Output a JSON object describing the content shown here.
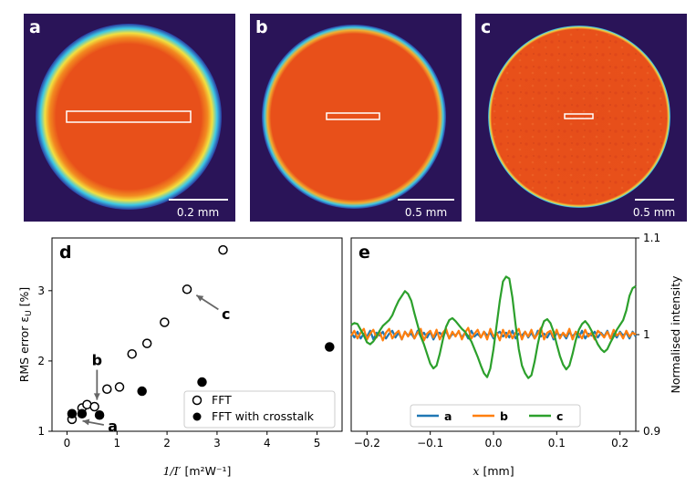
{
  "chart_data": [
    {
      "panel": "a",
      "type": "image",
      "scale_bar": "0.2 mm",
      "colors": {
        "background": "#2a1458",
        "disk": "#e8501a",
        "ring_outer": "#3cc8e6",
        "ring_mid": "#f0e040"
      }
    },
    {
      "panel": "b",
      "type": "image",
      "scale_bar": "0.5 mm",
      "colors": {
        "background": "#2a1458",
        "disk": "#e8501a",
        "ring_outer": "#3cc8e6",
        "ring_mid": "#f0e040"
      }
    },
    {
      "panel": "c",
      "type": "image",
      "scale_bar": "0.5 mm",
      "colors": {
        "background": "#2a1458",
        "disk": "#e8501a",
        "ring_outer": "#3cc8e6",
        "ring_mid": "#f0e040"
      }
    },
    {
      "panel": "d",
      "type": "scatter",
      "xlabel_main": "1/I′",
      "xlabel_unit": "[m²W⁻¹]",
      "ylabel_main": "RMS error ε",
      "ylabel_sub": "U",
      "ylabel_unit": "[%]",
      "xlim": [
        -0.3,
        5.5
      ],
      "ylim": [
        1,
        3.75
      ],
      "xticks": [
        "0",
        "1",
        "2",
        "3",
        "4",
        "5"
      ],
      "yticks": [
        "1",
        "2",
        "3"
      ],
      "series": [
        {
          "name": "FFT",
          "marker": "open-circle",
          "x": [
            0.1,
            0.3,
            0.4,
            0.55,
            0.8,
            1.05,
            1.3,
            1.6,
            1.95,
            2.4,
            3.12
          ],
          "y": [
            1.17,
            1.33,
            1.38,
            1.35,
            1.6,
            1.63,
            2.1,
            2.25,
            2.55,
            3.02,
            3.58
          ]
        },
        {
          "name": "FFT with crosstalk",
          "marker": "filled-circle",
          "x": [
            0.1,
            0.3,
            0.65,
            1.5,
            2.7,
            5.25
          ],
          "y": [
            1.25,
            1.25,
            1.23,
            1.57,
            1.7,
            2.2
          ]
        }
      ],
      "annotations": [
        {
          "label": "a",
          "points_to": [
            0.15,
            1.17
          ]
        },
        {
          "label": "b",
          "points_to": [
            0.6,
            1.33
          ]
        },
        {
          "label": "c",
          "points_to": [
            2.45,
            3.0
          ]
        }
      ],
      "legend_position": "bottom-right"
    },
    {
      "panel": "e",
      "type": "line",
      "xlabel_main": "x",
      "xlabel_unit": "[mm]",
      "ylabel": "Normalised intensity",
      "xlim": [
        -0.225,
        0.225
      ],
      "ylim": [
        0.9,
        1.1
      ],
      "xticks": [
        "−0.2",
        "−0.1",
        "0.0",
        "0.1",
        "0.2"
      ],
      "yticks": [
        "0.9",
        "1",
        "1.1"
      ],
      "x_start": -0.225,
      "x_step": 0.005,
      "series": [
        {
          "name": "a",
          "color": "#1f77b4",
          "values": [
            1.002,
            0.997,
            1.003,
            0.996,
            1.001,
            0.998,
            1.004,
            0.995,
            1.002,
            0.999,
            1.003,
            0.996,
            1.001,
            1.004,
            0.997,
            1.002,
            0.995,
            1.003,
            0.999,
            1.001,
            0.996,
            1.004,
            0.998,
            1.002,
            0.997,
            1.003,
            0.995,
            1.001,
            1.002,
            0.998,
            1.004,
            0.996,
            1.001,
            0.999,
            1.003,
            0.997,
            1.002,
            0.996,
            1.004,
            0.998,
            1.001,
            0.997,
            1.003,
            0.999,
            1.002,
            0.996,
            1.001,
            1.003,
            0.998,
            1.002,
            0.997,
            1.004,
            0.996,
            1.001,
            0.999,
            1.003,
            0.997,
            1.002,
            0.996,
            1.004,
            0.998,
            1.001,
            0.997,
            1.003,
            0.995,
            1.002,
            0.999,
            1.001,
            0.996,
            1.003,
            0.998,
            1.002,
            0.997,
            1.004,
            0.996,
            1.001,
            0.999,
            1.003,
            0.997,
            1.002,
            0.998,
            1.004,
            0.996,
            1.001,
            0.997,
            1.003,
            0.999,
            1.002,
            0.996,
            1.003,
            0.998
          ]
        },
        {
          "name": "b",
          "color": "#ff7f0e",
          "values": [
            0.999,
            1.004,
            0.996,
            1.002,
            1.006,
            0.995,
            1.001,
            1.005,
            0.997,
            1.003,
            0.994,
            1.002,
            1.006,
            0.996,
            1.001,
            1.004,
            0.995,
            1.003,
            0.998,
            1.005,
            0.996,
            1.002,
            1.006,
            0.994,
            1.001,
            1.004,
            0.997,
            1.005,
            0.995,
            1.002,
            1.006,
            0.996,
            1.003,
            0.998,
            1.004,
            0.995,
            1.002,
            1.007,
            0.996,
            1.001,
            1.005,
            0.997,
            1.003,
            0.995,
            1.006,
            0.998,
            1.002,
            0.994,
            1.005,
            0.997,
            1.004,
            0.996,
            1.002,
            1.006,
            0.995,
            1.003,
            0.998,
            1.005,
            0.996,
            1.001,
            1.007,
            0.995,
            1.002,
            1.004,
            0.997,
            1.005,
            0.996,
            1.002,
            0.998,
            1.006,
            0.995,
            1.003,
            1.001,
            0.996,
            1.005,
            0.998,
            1.002,
            0.995,
            1.004,
            1.001,
            0.997,
            1.003,
            0.996,
            1.005,
            0.999,
            1.002,
            0.996,
            1.004,
            0.998,
            1.002,
            1.0
          ]
        },
        {
          "name": "c",
          "color": "#2ca02c",
          "values": [
            1.01,
            1.012,
            1.011,
            1.005,
            0.999,
            0.992,
            0.99,
            0.993,
            0.998,
            1.004,
            1.009,
            1.012,
            1.015,
            1.02,
            1.028,
            1.035,
            1.04,
            1.045,
            1.042,
            1.035,
            1.022,
            1.01,
            0.998,
            0.99,
            0.98,
            0.97,
            0.965,
            0.968,
            0.98,
            0.995,
            1.008,
            1.015,
            1.017,
            1.014,
            1.01,
            1.006,
            1.003,
            0.998,
            0.993,
            0.985,
            0.977,
            0.968,
            0.96,
            0.956,
            0.965,
            0.985,
            1.01,
            1.035,
            1.055,
            1.06,
            1.058,
            1.038,
            1.01,
            0.985,
            0.968,
            0.96,
            0.955,
            0.958,
            0.972,
            0.99,
            1.005,
            1.014,
            1.016,
            1.012,
            1.003,
            0.99,
            0.978,
            0.969,
            0.964,
            0.968,
            0.98,
            0.994,
            1.005,
            1.011,
            1.014,
            1.01,
            1.004,
            0.997,
            0.99,
            0.985,
            0.982,
            0.985,
            0.992,
            0.998,
            1.005,
            1.01,
            1.015,
            1.025,
            1.04,
            1.048,
            1.05
          ]
        }
      ],
      "legend_position": "bottom-center"
    }
  ]
}
